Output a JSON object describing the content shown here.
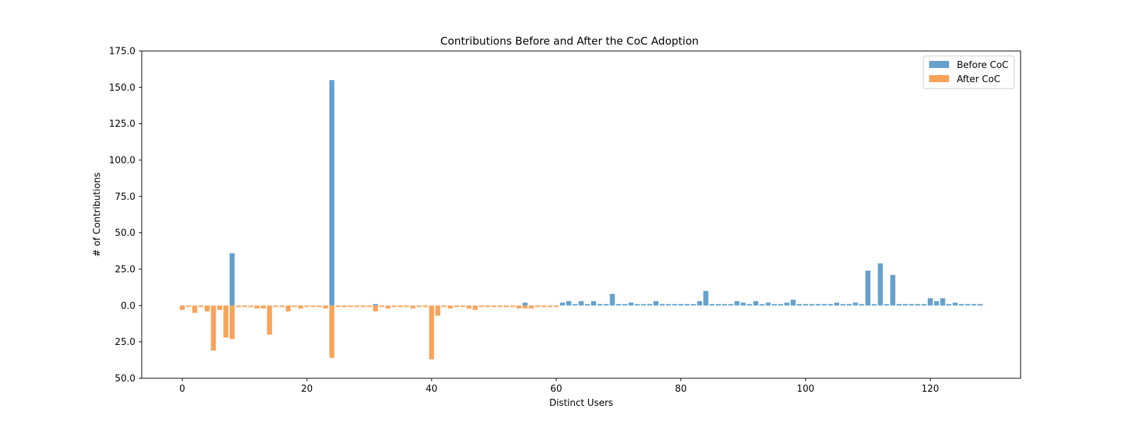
{
  "chart_data": {
    "type": "bar",
    "title": "Contributions Before and After the CoC Adoption",
    "xlabel": "Distinct Users",
    "ylabel": "# of Contributions",
    "xlim": [
      -6.5,
      134.5
    ],
    "ylim": [
      -50,
      175
    ],
    "x_ticks": [
      0,
      20,
      40,
      60,
      80,
      100,
      120
    ],
    "x_tick_labels": [
      "0",
      "20",
      "40",
      "60",
      "80",
      "100",
      "120"
    ],
    "y_ticks": [
      -50,
      -25,
      0,
      25,
      50,
      75,
      100,
      125,
      150,
      175
    ],
    "y_tick_labels": [
      "50.0",
      "25.0",
      "0.0",
      "25.0",
      "50.0",
      "75.0",
      "100.0",
      "125.0",
      "150.0",
      "175.0"
    ],
    "grid": false,
    "legend_position": "top-right",
    "colors": {
      "before": "#65a1cc",
      "after": "#f9a35a"
    },
    "x": [
      0,
      1,
      2,
      3,
      4,
      5,
      6,
      7,
      8,
      9,
      10,
      11,
      12,
      13,
      14,
      15,
      16,
      17,
      18,
      19,
      20,
      21,
      22,
      23,
      24,
      25,
      26,
      27,
      28,
      29,
      30,
      31,
      32,
      33,
      34,
      35,
      36,
      37,
      38,
      39,
      40,
      41,
      42,
      43,
      44,
      45,
      46,
      47,
      48,
      49,
      50,
      51,
      52,
      53,
      54,
      55,
      56,
      57,
      58,
      59,
      60,
      61,
      62,
      63,
      64,
      65,
      66,
      67,
      68,
      69,
      70,
      71,
      72,
      73,
      74,
      75,
      76,
      77,
      78,
      79,
      80,
      81,
      82,
      83,
      84,
      85,
      86,
      87,
      88,
      89,
      90,
      91,
      92,
      93,
      94,
      95,
      96,
      97,
      98,
      99,
      100,
      101,
      102,
      103,
      104,
      105,
      106,
      107,
      108,
      109,
      110,
      111,
      112,
      113,
      114,
      115,
      116,
      117,
      118,
      119,
      120,
      121,
      122,
      123,
      124,
      125,
      126,
      127,
      128
    ],
    "series": [
      {
        "name": "Before CoC",
        "values": [
          0,
          0,
          0,
          0,
          0,
          0,
          0,
          0,
          36,
          0,
          0,
          0,
          0,
          0,
          0,
          0,
          0,
          0,
          0,
          0,
          0,
          0,
          0,
          0,
          155,
          0,
          0,
          0,
          0,
          0,
          0,
          1,
          0,
          0,
          0,
          0,
          0,
          0,
          0,
          0,
          0,
          0,
          0,
          0,
          0,
          0,
          0,
          0,
          0,
          0,
          0,
          0,
          0,
          0,
          0,
          2,
          0,
          0,
          0,
          0,
          0,
          2,
          3,
          1,
          3,
          1,
          3,
          1,
          1,
          8,
          1,
          1,
          2,
          1,
          1,
          1,
          3,
          1,
          1,
          1,
          1,
          1,
          1,
          3,
          10,
          1,
          1,
          1,
          1,
          3,
          2,
          1,
          3,
          1,
          2,
          1,
          1,
          2,
          4,
          1,
          1,
          1,
          1,
          1,
          1,
          2,
          1,
          1,
          2,
          1,
          24,
          1,
          29,
          1,
          21,
          1,
          1,
          1,
          1,
          1,
          5,
          3,
          5,
          1,
          2,
          1,
          1,
          1,
          1
        ]
      },
      {
        "name": "After CoC",
        "values": [
          -3,
          -1,
          -5,
          -1,
          -4,
          -31,
          -3,
          -22,
          -23,
          -1,
          -1,
          -1,
          -2,
          -2,
          -20,
          -1,
          -1,
          -4,
          -1,
          -2,
          -1,
          -1,
          -1,
          -2,
          -36,
          -1,
          -1,
          -1,
          -1,
          -1,
          -1,
          -4,
          -1,
          -2,
          -1,
          -1,
          -1,
          -2,
          -1,
          -1,
          -37,
          -7,
          -1,
          -2,
          -1,
          -1,
          -2,
          -3,
          -1,
          -1,
          -1,
          -1,
          -1,
          -1,
          -2,
          -2,
          -2,
          -1,
          -1,
          -1,
          -1,
          0,
          0,
          0,
          0,
          0,
          0,
          0,
          0,
          0,
          0,
          0,
          0,
          0,
          0,
          0,
          0,
          0,
          0,
          0,
          0,
          0,
          0,
          0,
          0,
          0,
          0,
          0,
          0,
          0,
          0,
          0,
          0,
          0,
          0,
          0,
          0,
          0,
          0,
          0,
          0,
          0,
          0,
          0,
          0,
          0,
          0,
          0,
          0,
          0,
          0,
          0,
          0,
          0,
          0,
          0,
          0,
          0,
          0,
          0,
          0,
          0,
          0,
          0,
          0,
          0,
          0,
          0,
          0
        ]
      }
    ]
  }
}
